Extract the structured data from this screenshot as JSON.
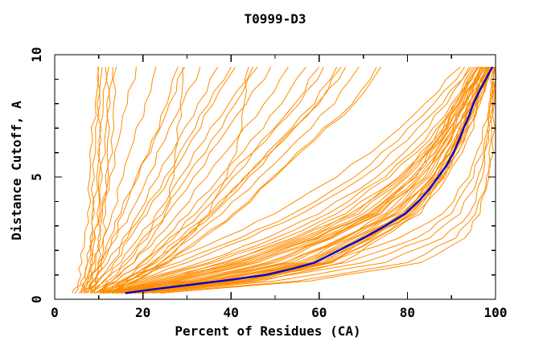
{
  "chart_data": {
    "type": "line",
    "title": "T0999-D3",
    "xlabel": "Percent of Residues (CA)",
    "ylabel": "Distance Cutoff, A",
    "xlim": [
      0,
      100
    ],
    "ylim": [
      0,
      10
    ],
    "x_ticks": [
      0,
      20,
      40,
      60,
      80,
      100
    ],
    "x_tick_labels": [
      "0",
      "20",
      "40",
      "60",
      "80",
      "100"
    ],
    "x_minor_step": 10,
    "y_ticks": [
      0,
      5,
      10
    ],
    "y_tick_labels": [
      "0",
      "5",
      "10"
    ],
    "y_minor_step": 1,
    "grid": false,
    "legend": "none",
    "colors": {
      "orange": "#ff8c00",
      "blue": "#0000cd",
      "axis": "#000000"
    },
    "blue_curve": {
      "y": [
        0.25,
        0.4,
        0.6,
        0.8,
        1.0,
        1.25,
        1.5,
        2,
        2.5,
        3,
        3.5,
        4,
        4.5,
        5,
        5.5,
        6,
        6.5,
        7,
        7.5,
        8,
        8.5,
        9,
        9.5
      ],
      "x": [
        16,
        22,
        31,
        40,
        48,
        54,
        59,
        64.5,
        70,
        75,
        79.5,
        82.5,
        85,
        87,
        89,
        90.5,
        91.7,
        92.8,
        94,
        95,
        96.3,
        97.8,
        99.3
      ]
    },
    "orange_y_grid": [
      0.25,
      0.75,
      1.5,
      2.5,
      3.5,
      5,
      6.5,
      8,
      9.5
    ],
    "orange_curves": [
      [
        6.5,
        7,
        7.5,
        8,
        8.5,
        9,
        9.3,
        9.6,
        10
      ],
      [
        7,
        7.5,
        8,
        8.5,
        9,
        9.5,
        10,
        10.3,
        10.8
      ],
      [
        7.5,
        8,
        8.6,
        9.2,
        9.6,
        10,
        10.5,
        11,
        11.5
      ],
      [
        8,
        8.7,
        9.3,
        9.8,
        10.2,
        10.8,
        11.3,
        11.8,
        12.3
      ],
      [
        8.5,
        9.2,
        9.8,
        10.4,
        10.9,
        11.5,
        12,
        12.6,
        13.2
      ],
      [
        4.5,
        5.5,
        6.2,
        6.8,
        7.4,
        8,
        8.6,
        9.2,
        9.8
      ],
      [
        9,
        9.8,
        10.5,
        11,
        11.6,
        12.2,
        12.8,
        13.4,
        14
      ],
      [
        4,
        6,
        7.5,
        9,
        10.5,
        12.5,
        14.5,
        16.5,
        18.5
      ],
      [
        5.5,
        7,
        9,
        11,
        13,
        15.5,
        18,
        20.5,
        23
      ],
      [
        6,
        7.5,
        10,
        12.5,
        15,
        18.5,
        22,
        25.5,
        28
      ],
      [
        6.5,
        8.5,
        11,
        14,
        17,
        21,
        25,
        29,
        33
      ],
      [
        7,
        9,
        12,
        15.5,
        19,
        23.5,
        28,
        32.5,
        37
      ],
      [
        7.5,
        10,
        13.5,
        17,
        21,
        26,
        31,
        36,
        41
      ],
      [
        8,
        11,
        15,
        19,
        23,
        28.5,
        34,
        39.5,
        45
      ],
      [
        6,
        8,
        10.5,
        13,
        15.5,
        19,
        22.5,
        26,
        29.5
      ],
      [
        7,
        9.5,
        13,
        16.5,
        20,
        25,
        30,
        35,
        40
      ],
      [
        9,
        13,
        18,
        22,
        25,
        27,
        28,
        28.5,
        29
      ],
      [
        11,
        17,
        24,
        30,
        35,
        39,
        41.5,
        43,
        44
      ],
      [
        8.5,
        12,
        16.5,
        21,
        25.5,
        31.5,
        37.5,
        43.5,
        49
      ],
      [
        9,
        13,
        18,
        23,
        28,
        34.5,
        41,
        47.5,
        53
      ],
      [
        9.5,
        14,
        19.5,
        25,
        30.5,
        37.5,
        44.5,
        51.5,
        57
      ],
      [
        10,
        15,
        21,
        27,
        33,
        40.5,
        48,
        55.5,
        61
      ],
      [
        10.5,
        16,
        22.5,
        29,
        35.5,
        43.5,
        51.5,
        59.5,
        65
      ],
      [
        11,
        17,
        24,
        31,
        38,
        46.5,
        55,
        63.5,
        69
      ],
      [
        11.5,
        18,
        25.5,
        33,
        40.5,
        49.5,
        58.5,
        67.5,
        73
      ],
      [
        9,
        14,
        20,
        26,
        32,
        39.5,
        47,
        54.5,
        60
      ],
      [
        10,
        15.5,
        22,
        28.5,
        35,
        43,
        51,
        59,
        64
      ],
      [
        12,
        18.5,
        26,
        33.5,
        41,
        50,
        59,
        68,
        74
      ],
      [
        8,
        11.5,
        15.5,
        20,
        24.5,
        30,
        35.5,
        41,
        46
      ],
      [
        11,
        16.5,
        23,
        29.5,
        36,
        44,
        52,
        60,
        66
      ],
      [
        10,
        20,
        35,
        50,
        62,
        75,
        84,
        90,
        95
      ],
      [
        11,
        22,
        38,
        54,
        66,
        78,
        86,
        91,
        96
      ],
      [
        12,
        25,
        42,
        58,
        70,
        80,
        87,
        92,
        96.5
      ],
      [
        13,
        28,
        45,
        60,
        72,
        82,
        88,
        93,
        97
      ],
      [
        14,
        32,
        50,
        63,
        74,
        83,
        89,
        93.5,
        97.5
      ],
      [
        15,
        35,
        54,
        66,
        76,
        85,
        90,
        94,
        98
      ],
      [
        16,
        38,
        57,
        68,
        78,
        86,
        91,
        94.5,
        98.5
      ],
      [
        17,
        40,
        59,
        70,
        79,
        87,
        91.5,
        95,
        98.7
      ],
      [
        18,
        42,
        61,
        71,
        80,
        87.5,
        92,
        95.5,
        99
      ],
      [
        12,
        24,
        40,
        56,
        68,
        79,
        86.5,
        91.5,
        96
      ],
      [
        10,
        18,
        30,
        44,
        56,
        70,
        80,
        88,
        94
      ],
      [
        11,
        21,
        36,
        52,
        64,
        76,
        85,
        90.5,
        95.5
      ],
      [
        13,
        30,
        48,
        62,
        73,
        82.5,
        88.5,
        93,
        97
      ],
      [
        9,
        16,
        28,
        42,
        54,
        68,
        78,
        86,
        93
      ],
      [
        14,
        33,
        52,
        65,
        75,
        84,
        89.5,
        93.8,
        97.8
      ],
      [
        15,
        36,
        55,
        67,
        77,
        85.5,
        90.5,
        94.2,
        98.2
      ],
      [
        16,
        39,
        58,
        69,
        78.5,
        86.5,
        91,
        94.7,
        98.6
      ],
      [
        17,
        41,
        60,
        70.5,
        79.5,
        87,
        91.8,
        95.2,
        98.8
      ],
      [
        18,
        43,
        62,
        72,
        81,
        88,
        92.5,
        95.8,
        99.1
      ],
      [
        19,
        45,
        63,
        73,
        82,
        88.5,
        93,
        96,
        99.3
      ],
      [
        20,
        47,
        65,
        74,
        83,
        89,
        93.5,
        96.5,
        99.5
      ],
      [
        12,
        26,
        43,
        59,
        71,
        81,
        87.5,
        92.5,
        96.8
      ],
      [
        13,
        29,
        46,
        61,
        72.5,
        82,
        88,
        92.8,
        96.9
      ],
      [
        10,
        19,
        33,
        48,
        60,
        73,
        82,
        89,
        94.5
      ],
      [
        11,
        23,
        39,
        55,
        67,
        78.5,
        86,
        91,
        95.8
      ],
      [
        9,
        15,
        25,
        38,
        50,
        64,
        75,
        84,
        92
      ],
      [
        14,
        31,
        49,
        62.5,
        73.5,
        83,
        88.7,
        93.2,
        97.2
      ],
      [
        15,
        34,
        53,
        65.5,
        75.5,
        84.5,
        89.8,
        94,
        97.9
      ],
      [
        16,
        37,
        56,
        67.5,
        77.5,
        85.8,
        90.8,
        94.5,
        98.4
      ],
      [
        13,
        27,
        44,
        59.5,
        71.5,
        81.5,
        87.8,
        92.6,
        96.7
      ],
      [
        17,
        39.5,
        58.5,
        69.5,
        79,
        86.8,
        91.3,
        94.9,
        98.6
      ],
      [
        12,
        25,
        41,
        57,
        69,
        79.5,
        86.8,
        91.8,
        96.2
      ],
      [
        18,
        42,
        61.5,
        71.5,
        80.5,
        87.7,
        92.2,
        95.6,
        99
      ],
      [
        19,
        44,
        62.5,
        72.5,
        81.5,
        88.2,
        92.8,
        95.9,
        99.2
      ],
      [
        18,
        45,
        70,
        85,
        92,
        96,
        98,
        99,
        99.8
      ],
      [
        20,
        50,
        75,
        88,
        94,
        97,
        98.5,
        99.3,
        99.9
      ],
      [
        17,
        42,
        66,
        82,
        90,
        95,
        97.5,
        98.8,
        99.7
      ],
      [
        22,
        55,
        80,
        91,
        95.5,
        98,
        99,
        99.5,
        100
      ],
      [
        16,
        40,
        62,
        78,
        88,
        94,
        97,
        98.5,
        99.6
      ],
      [
        24,
        58,
        83,
        93,
        96.5,
        98.5,
        99.2,
        99.7,
        100
      ]
    ]
  }
}
